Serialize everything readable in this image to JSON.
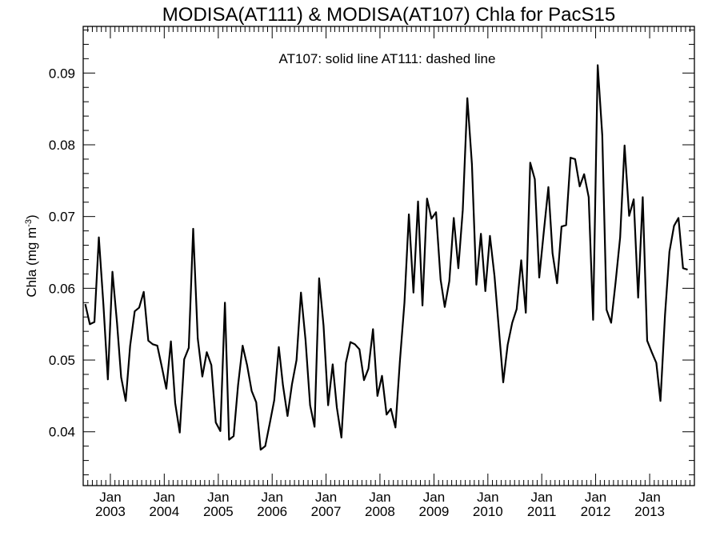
{
  "chart_data": {
    "type": "line",
    "title": "MODISA(AT111) & MODISA(AT107)  Chla for PacS15",
    "annotation": "AT107: solid line   AT111: dashed line",
    "ylabel": "Chla (mg m",
    "ylabel_superscript": "-3",
    "ylabel_close": ")",
    "ylim": [
      0.0325,
      0.0965
    ],
    "xlim": [
      "2002-07-01",
      "2013-10-31"
    ],
    "y_ticks": [
      {
        "value": 0.04,
        "label": "0.04"
      },
      {
        "value": 0.05,
        "label": "0.05"
      },
      {
        "value": 0.06,
        "label": "0.06"
      },
      {
        "value": 0.07,
        "label": "0.07"
      },
      {
        "value": 0.08,
        "label": "0.08"
      },
      {
        "value": 0.09,
        "label": "0.09"
      }
    ],
    "x_ticks": [
      {
        "date": "2003-01-01",
        "month": "Jan",
        "year": "2003"
      },
      {
        "date": "2004-01-01",
        "month": "Jan",
        "year": "2004"
      },
      {
        "date": "2005-01-01",
        "month": "Jan",
        "year": "2005"
      },
      {
        "date": "2006-01-01",
        "month": "Jan",
        "year": "2006"
      },
      {
        "date": "2007-01-01",
        "month": "Jan",
        "year": "2007"
      },
      {
        "date": "2008-01-01",
        "month": "Jan",
        "year": "2008"
      },
      {
        "date": "2009-01-01",
        "month": "Jan",
        "year": "2009"
      },
      {
        "date": "2010-01-01",
        "month": "Jan",
        "year": "2010"
      },
      {
        "date": "2011-01-01",
        "month": "Jan",
        "year": "2011"
      },
      {
        "date": "2012-01-01",
        "month": "Jan",
        "year": "2012"
      },
      {
        "date": "2013-01-01",
        "month": "Jan",
        "year": "2013"
      }
    ],
    "series": [
      {
        "line_style": "solid",
        "color": "#000000",
        "points": [
          [
            "2002-07",
            0.0578
          ],
          [
            "2002-08",
            0.055
          ],
          [
            "2002-09",
            0.0553
          ],
          [
            "2002-10",
            0.0671
          ],
          [
            "2002-11",
            0.0577
          ],
          [
            "2002-12",
            0.0473
          ],
          [
            "2003-01",
            0.0623
          ],
          [
            "2003-02",
            0.0552
          ],
          [
            "2003-03",
            0.0476
          ],
          [
            "2003-04",
            0.0443
          ],
          [
            "2003-05",
            0.052
          ],
          [
            "2003-06",
            0.0568
          ],
          [
            "2003-07",
            0.0573
          ],
          [
            "2003-08",
            0.0595
          ],
          [
            "2003-09",
            0.0527
          ],
          [
            "2003-10",
            0.0522
          ],
          [
            "2003-11",
            0.052
          ],
          [
            "2003-12",
            0.0491
          ],
          [
            "2004-01",
            0.046
          ],
          [
            "2004-02",
            0.0526
          ],
          [
            "2004-03",
            0.044
          ],
          [
            "2004-04",
            0.0399
          ],
          [
            "2004-05",
            0.0501
          ],
          [
            "2004-06",
            0.0517
          ],
          [
            "2004-07",
            0.0683
          ],
          [
            "2004-08",
            0.053
          ],
          [
            "2004-09",
            0.0477
          ],
          [
            "2004-10",
            0.0511
          ],
          [
            "2004-11",
            0.0493
          ],
          [
            "2004-12",
            0.0413
          ],
          [
            "2005-01",
            0.0401
          ],
          [
            "2005-02",
            0.058
          ],
          [
            "2005-03",
            0.0389
          ],
          [
            "2005-04",
            0.0394
          ],
          [
            "2005-05",
            0.0465
          ],
          [
            "2005-06",
            0.052
          ],
          [
            "2005-07",
            0.0493
          ],
          [
            "2005-08",
            0.0457
          ],
          [
            "2005-09",
            0.0441
          ],
          [
            "2005-10",
            0.0375
          ],
          [
            "2005-11",
            0.038
          ],
          [
            "2005-12",
            0.0411
          ],
          [
            "2006-01",
            0.0444
          ],
          [
            "2006-02",
            0.0518
          ],
          [
            "2006-03",
            0.0465
          ],
          [
            "2006-04",
            0.0422
          ],
          [
            "2006-05",
            0.0466
          ],
          [
            "2006-06",
            0.05
          ],
          [
            "2006-07",
            0.0594
          ],
          [
            "2006-08",
            0.0528
          ],
          [
            "2006-09",
            0.0437
          ],
          [
            "2006-10",
            0.0407
          ],
          [
            "2006-11",
            0.0614
          ],
          [
            "2006-12",
            0.0548
          ],
          [
            "2007-01",
            0.0437
          ],
          [
            "2007-02",
            0.0494
          ],
          [
            "2007-03",
            0.0434
          ],
          [
            "2007-04",
            0.0392
          ],
          [
            "2007-05",
            0.0496
          ],
          [
            "2007-06",
            0.0525
          ],
          [
            "2007-07",
            0.0522
          ],
          [
            "2007-08",
            0.0515
          ],
          [
            "2007-09",
            0.0472
          ],
          [
            "2007-10",
            0.0488
          ],
          [
            "2007-11",
            0.0543
          ],
          [
            "2007-12",
            0.045
          ],
          [
            "2008-01",
            0.0478
          ],
          [
            "2008-02",
            0.0424
          ],
          [
            "2008-03",
            0.0432
          ],
          [
            "2008-04",
            0.0406
          ],
          [
            "2008-05",
            0.0498
          ],
          [
            "2008-06",
            0.058
          ],
          [
            "2008-07",
            0.0703
          ],
          [
            "2008-08",
            0.0594
          ],
          [
            "2008-09",
            0.0721
          ],
          [
            "2008-10",
            0.0576
          ],
          [
            "2008-11",
            0.0725
          ],
          [
            "2008-12",
            0.0697
          ],
          [
            "2009-01",
            0.0706
          ],
          [
            "2009-02",
            0.0612
          ],
          [
            "2009-03",
            0.0574
          ],
          [
            "2009-04",
            0.061
          ],
          [
            "2009-05",
            0.0698
          ],
          [
            "2009-06",
            0.0628
          ],
          [
            "2009-07",
            0.0709
          ],
          [
            "2009-08",
            0.0865
          ],
          [
            "2009-09",
            0.0773
          ],
          [
            "2009-10",
            0.0605
          ],
          [
            "2009-11",
            0.0676
          ],
          [
            "2009-12",
            0.0596
          ],
          [
            "2010-01",
            0.0673
          ],
          [
            "2010-02",
            0.0617
          ],
          [
            "2010-03",
            0.0547
          ],
          [
            "2010-04",
            0.0469
          ],
          [
            "2010-05",
            0.0521
          ],
          [
            "2010-06",
            0.0552
          ],
          [
            "2010-07",
            0.0571
          ],
          [
            "2010-08",
            0.0639
          ],
          [
            "2010-09",
            0.0566
          ],
          [
            "2010-10",
            0.0775
          ],
          [
            "2010-11",
            0.0752
          ],
          [
            "2010-12",
            0.0615
          ],
          [
            "2011-01",
            0.0679
          ],
          [
            "2011-02",
            0.0741
          ],
          [
            "2011-03",
            0.0649
          ],
          [
            "2011-04",
            0.0607
          ],
          [
            "2011-05",
            0.0686
          ],
          [
            "2011-06",
            0.0688
          ],
          [
            "2011-07",
            0.0782
          ],
          [
            "2011-08",
            0.078
          ],
          [
            "2011-09",
            0.0742
          ],
          [
            "2011-10",
            0.0759
          ],
          [
            "2011-11",
            0.0727
          ],
          [
            "2011-12",
            0.0556
          ],
          [
            "2012-01",
            0.0911
          ],
          [
            "2012-02",
            0.0813
          ],
          [
            "2012-03",
            0.057
          ],
          [
            "2012-04",
            0.0552
          ],
          [
            "2012-05",
            0.0608
          ],
          [
            "2012-06",
            0.0671
          ],
          [
            "2012-07",
            0.0799
          ],
          [
            "2012-08",
            0.0701
          ],
          [
            "2012-09",
            0.0724
          ],
          [
            "2012-10",
            0.0587
          ],
          [
            "2012-11",
            0.0727
          ],
          [
            "2012-12",
            0.0527
          ],
          [
            "2013-01",
            0.0511
          ],
          [
            "2013-02",
            0.0496
          ],
          [
            "2013-03",
            0.0443
          ],
          [
            "2013-04",
            0.0563
          ],
          [
            "2013-05",
            0.0651
          ],
          [
            "2013-06",
            0.0687
          ],
          [
            "2013-07",
            0.0698
          ],
          [
            "2013-08",
            0.0628
          ],
          [
            "2013-09",
            0.0626
          ]
        ]
      }
    ],
    "grid": false,
    "legend": "none"
  }
}
